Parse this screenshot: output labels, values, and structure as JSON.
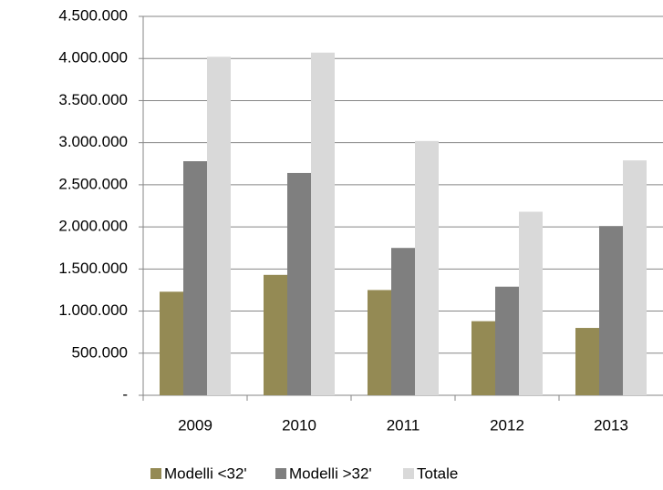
{
  "chart_data": {
    "type": "bar",
    "categories": [
      "2009",
      "2010",
      "2011",
      "2012",
      "2013"
    ],
    "series": [
      {
        "name": "Modelli <32'",
        "color": "#948a54",
        "values": [
          1230000,
          1430000,
          1250000,
          880000,
          800000
        ]
      },
      {
        "name": "Modelli >32'",
        "color": "#7f7f7f",
        "values": [
          2780000,
          2640000,
          1750000,
          1290000,
          2010000
        ]
      },
      {
        "name": "Totale",
        "color": "#d9d9d9",
        "values": [
          4020000,
          4070000,
          3020000,
          2180000,
          2790000
        ]
      }
    ],
    "ylim": [
      0,
      4500000
    ],
    "yticks": [
      {
        "value": 0,
        "label": "-"
      },
      {
        "value": 500000,
        "label": "500.000"
      },
      {
        "value": 1000000,
        "label": "1.000.000"
      },
      {
        "value": 1500000,
        "label": "1.500.000"
      },
      {
        "value": 2000000,
        "label": "2.000.000"
      },
      {
        "value": 2500000,
        "label": "2.500.000"
      },
      {
        "value": 3000000,
        "label": "3.000.000"
      },
      {
        "value": 3500000,
        "label": "3.500.000"
      },
      {
        "value": 4000000,
        "label": "4.000.000"
      },
      {
        "value": 4500000,
        "label": "4.500.000"
      }
    ],
    "grid": true,
    "legend": "bottom"
  }
}
